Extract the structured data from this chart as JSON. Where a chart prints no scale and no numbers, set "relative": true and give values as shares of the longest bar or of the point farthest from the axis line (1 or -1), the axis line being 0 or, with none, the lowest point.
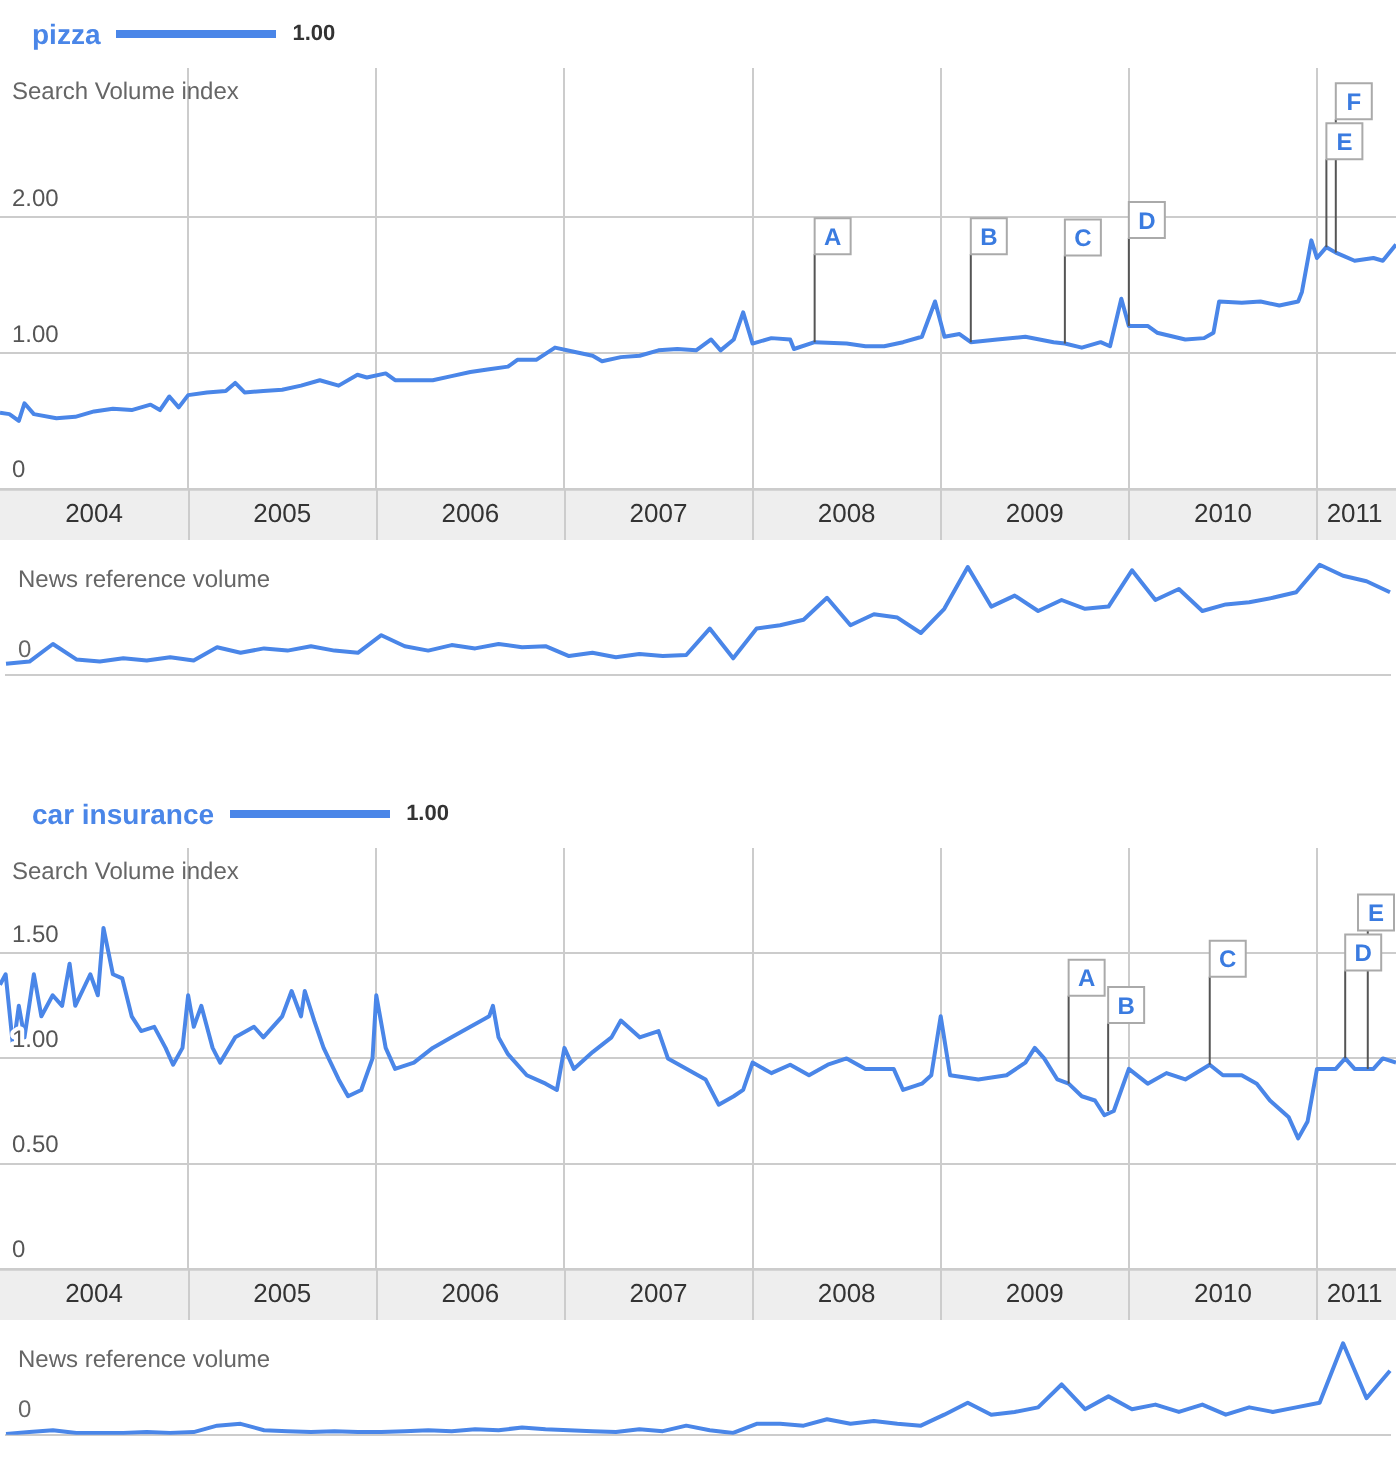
{
  "chart_data": [
    {
      "type": "line",
      "ylabel": "Search Volume index",
      "legend": "top left",
      "grid": true,
      "marker": "none",
      "line_style": "solid",
      "xlim": [
        2004,
        2011.42
      ],
      "xticks": [
        {
          "value": 2004.5,
          "label": "2004"
        },
        {
          "value": 2005,
          "label": null
        },
        {
          "value": 2005.5,
          "label": "2005"
        },
        {
          "value": 2006,
          "label": null
        },
        {
          "value": 2006.5,
          "label": "2006"
        },
        {
          "value": 2007,
          "label": null
        },
        {
          "value": 2007.5,
          "label": "2007"
        },
        {
          "value": 2008,
          "label": null
        },
        {
          "value": 2008.5,
          "label": "2008"
        },
        {
          "value": 2009,
          "label": null
        },
        {
          "value": 2009.5,
          "label": "2009"
        },
        {
          "value": 2010,
          "label": null
        },
        {
          "value": 2010.5,
          "label": "2010"
        },
        {
          "value": 2011,
          "label": null
        },
        {
          "value": 2011.2,
          "label": "2011"
        }
      ],
      "ylim": [
        0,
        3.1
      ],
      "yticks": [
        0,
        {
          "value": 1,
          "label": "1.00"
        },
        {
          "value": 2,
          "label": "2.00"
        }
      ],
      "annotations": [
        "1.00",
        {
          "text": "A",
          "x": 2008.33,
          "y": 1.08
        },
        {
          "text": "B",
          "x": 2009.16,
          "y": 1.08
        },
        {
          "text": "C",
          "x": 2009.66,
          "y": 1.07
        },
        {
          "text": "D",
          "x": 2010.0,
          "y": 1.2
        },
        {
          "text": "E",
          "x": 2011.05,
          "y": 1.78
        },
        {
          "text": "F",
          "x": 2011.1,
          "y": 1.74
        }
      ],
      "series": [
        {
          "name": "pizza",
          "color": "#4a86e8",
          "x": [
            2004.0,
            2004.05,
            2004.1,
            2004.13,
            2004.18,
            2004.3,
            2004.4,
            2004.5,
            2004.6,
            2004.7,
            2004.8,
            2004.85,
            2004.9,
            2004.95,
            2005.0,
            2005.1,
            2005.2,
            2005.25,
            2005.3,
            2005.4,
            2005.5,
            2005.6,
            2005.7,
            2005.8,
            2005.9,
            2005.95,
            2006.05,
            2006.1,
            2006.2,
            2006.3,
            2006.4,
            2006.5,
            2006.6,
            2006.7,
            2006.75,
            2006.85,
            2006.95,
            2007.05,
            2007.15,
            2007.2,
            2007.3,
            2007.4,
            2007.5,
            2007.6,
            2007.7,
            2007.78,
            2007.83,
            2007.9,
            2007.95,
            2008.0,
            2008.1,
            2008.2,
            2008.22,
            2008.33,
            2008.5,
            2008.6,
            2008.7,
            2008.8,
            2008.9,
            2008.97,
            2009.02,
            2009.1,
            2009.16,
            2009.3,
            2009.45,
            2009.6,
            2009.66,
            2009.75,
            2009.85,
            2009.9,
            2009.96,
            2010.0,
            2010.1,
            2010.15,
            2010.3,
            2010.4,
            2010.45,
            2010.48,
            2010.6,
            2010.7,
            2010.8,
            2010.9,
            2010.92,
            2010.97,
            2011.0,
            2011.05,
            2011.1,
            2011.2,
            2011.3,
            2011.35,
            2011.42
          ],
          "values": [
            0.56,
            0.55,
            0.5,
            0.63,
            0.55,
            0.52,
            0.53,
            0.57,
            0.59,
            0.58,
            0.62,
            0.58,
            0.68,
            0.6,
            0.69,
            0.71,
            0.72,
            0.78,
            0.71,
            0.72,
            0.73,
            0.76,
            0.8,
            0.76,
            0.84,
            0.82,
            0.85,
            0.8,
            0.8,
            0.8,
            0.83,
            0.86,
            0.88,
            0.9,
            0.95,
            0.95,
            1.04,
            1.01,
            0.98,
            0.94,
            0.97,
            0.98,
            1.02,
            1.03,
            1.02,
            1.1,
            1.02,
            1.1,
            1.3,
            1.07,
            1.11,
            1.1,
            1.03,
            1.08,
            1.07,
            1.05,
            1.05,
            1.08,
            1.12,
            1.38,
            1.12,
            1.14,
            1.08,
            1.1,
            1.12,
            1.08,
            1.07,
            1.04,
            1.08,
            1.05,
            1.4,
            1.2,
            1.2,
            1.15,
            1.1,
            1.11,
            1.15,
            1.38,
            1.37,
            1.38,
            1.35,
            1.38,
            1.45,
            1.83,
            1.7,
            1.78,
            1.74,
            1.68,
            1.7,
            1.68,
            1.8
          ]
        }
      ]
    },
    {
      "type": "line",
      "ylabel": "News reference volume",
      "relative": true,
      "marker": "none",
      "line_style": "solid",
      "categories": [
        null,
        null,
        null,
        null,
        null,
        null,
        null,
        null,
        null,
        null,
        null,
        null,
        null,
        null,
        null,
        null,
        null,
        null,
        null,
        null,
        null,
        null,
        null,
        null,
        null,
        null,
        null,
        null,
        null,
        null,
        null,
        null,
        null,
        null,
        null,
        null,
        null,
        null,
        null,
        null,
        null,
        null,
        null,
        null,
        null,
        null,
        null,
        null,
        null,
        null,
        null,
        null,
        null,
        null,
        null,
        null,
        null,
        null,
        null,
        null
      ],
      "annotations": [
        "0"
      ],
      "series": [
        {
          "color": "#4a86e8",
          "values": [
            0.1,
            0.12,
            0.28,
            0.14,
            0.12,
            0.15,
            0.13,
            0.16,
            0.13,
            0.25,
            0.2,
            0.24,
            0.22,
            0.26,
            0.22,
            0.2,
            0.36,
            0.26,
            0.22,
            0.27,
            0.24,
            0.28,
            0.25,
            0.26,
            0.17,
            0.2,
            0.16,
            0.19,
            0.17,
            0.18,
            0.42,
            0.15,
            0.42,
            0.45,
            0.5,
            0.7,
            0.45,
            0.55,
            0.52,
            0.38,
            0.6,
            0.98,
            0.62,
            0.72,
            0.58,
            0.68,
            0.6,
            0.62,
            0.95,
            0.68,
            0.78,
            0.58,
            0.64,
            0.66,
            0.7,
            0.75,
            1.0,
            0.9,
            0.85,
            0.75
          ]
        }
      ]
    },
    {
      "type": "line",
      "ylabel": "Search Volume index",
      "legend": "top left",
      "grid": true,
      "marker": "none",
      "line_style": "solid",
      "xlim": [
        2004,
        2011.42
      ],
      "xticks": [
        {
          "value": 2004.5,
          "label": "2004"
        },
        {
          "value": 2005,
          "label": null
        },
        {
          "value": 2005.5,
          "label": "2005"
        },
        {
          "value": 2006,
          "label": null
        },
        {
          "value": 2006.5,
          "label": "2006"
        },
        {
          "value": 2007,
          "label": null
        },
        {
          "value": 2007.5,
          "label": "2007"
        },
        {
          "value": 2008,
          "label": null
        },
        {
          "value": 2008.5,
          "label": "2008"
        },
        {
          "value": 2009,
          "label": null
        },
        {
          "value": 2009.5,
          "label": "2009"
        },
        {
          "value": 2010,
          "label": null
        },
        {
          "value": 2010.5,
          "label": "2010"
        },
        {
          "value": 2011,
          "label": null
        },
        {
          "value": 2011.2,
          "label": "2011"
        }
      ],
      "ylim": [
        0,
        2.0
      ],
      "yticks": [
        0,
        {
          "value": 0.5,
          "label": "0.50"
        },
        {
          "value": 1,
          "label": "1.00"
        },
        {
          "value": 1.5,
          "label": "1.50"
        }
      ],
      "annotations": [
        "1.00",
        {
          "text": "A",
          "x": 2009.68,
          "y": 0.88
        },
        {
          "text": "B",
          "x": 2009.89,
          "y": 0.75
        },
        {
          "text": "C",
          "x": 2010.43,
          "y": 0.97
        },
        {
          "text": "D",
          "x": 2011.15,
          "y": 1.0
        },
        {
          "text": "E",
          "x": 2011.27,
          "y": 0.95
        }
      ],
      "series": [
        {
          "name": "car insurance",
          "color": "#4a86e8",
          "x": [
            2004.0,
            2004.03,
            2004.07,
            2004.1,
            2004.13,
            2004.18,
            2004.22,
            2004.28,
            2004.33,
            2004.37,
            2004.4,
            2004.48,
            2004.52,
            2004.55,
            2004.6,
            2004.65,
            2004.7,
            2004.75,
            2004.82,
            2004.88,
            2004.92,
            2004.97,
            2005.0,
            2005.03,
            2005.07,
            2005.13,
            2005.17,
            2005.25,
            2005.35,
            2005.4,
            2005.45,
            2005.5,
            2005.55,
            2005.6,
            2005.62,
            2005.67,
            2005.72,
            2005.8,
            2005.85,
            2005.92,
            2005.98,
            2006.0,
            2006.05,
            2006.1,
            2006.2,
            2006.3,
            2006.4,
            2006.5,
            2006.6,
            2006.62,
            2006.65,
            2006.7,
            2006.8,
            2006.9,
            2006.96,
            2007.0,
            2007.05,
            2007.15,
            2007.25,
            2007.3,
            2007.4,
            2007.5,
            2007.55,
            2007.65,
            2007.75,
            2007.82,
            2007.9,
            2007.95,
            2008.0,
            2008.1,
            2008.2,
            2008.3,
            2008.4,
            2008.5,
            2008.6,
            2008.75,
            2008.8,
            2008.9,
            2008.95,
            2009.0,
            2009.05,
            2009.2,
            2009.35,
            2009.45,
            2009.5,
            2009.55,
            2009.62,
            2009.68,
            2009.75,
            2009.82,
            2009.87,
            2009.92,
            2010.0,
            2010.1,
            2010.2,
            2010.3,
            2010.43,
            2010.5,
            2010.6,
            2010.68,
            2010.75,
            2010.85,
            2010.9,
            2010.95,
            2011.0,
            2011.1,
            2011.15,
            2011.2,
            2011.3,
            2011.35,
            2011.42
          ],
          "values": [
            1.35,
            1.4,
            1.05,
            1.25,
            1.1,
            1.4,
            1.2,
            1.3,
            1.25,
            1.45,
            1.25,
            1.4,
            1.3,
            1.62,
            1.4,
            1.38,
            1.2,
            1.13,
            1.15,
            1.05,
            0.97,
            1.05,
            1.3,
            1.15,
            1.25,
            1.05,
            0.98,
            1.1,
            1.15,
            1.1,
            1.15,
            1.2,
            1.32,
            1.2,
            1.32,
            1.18,
            1.05,
            0.9,
            0.82,
            0.85,
            1.0,
            1.3,
            1.05,
            0.95,
            0.98,
            1.05,
            1.1,
            1.15,
            1.2,
            1.25,
            1.1,
            1.02,
            0.92,
            0.88,
            0.85,
            1.05,
            0.95,
            1.03,
            1.1,
            1.18,
            1.1,
            1.13,
            1.0,
            0.95,
            0.9,
            0.78,
            0.82,
            0.85,
            0.98,
            0.93,
            0.97,
            0.92,
            0.97,
            1.0,
            0.95,
            0.95,
            0.85,
            0.88,
            0.92,
            1.2,
            0.92,
            0.9,
            0.92,
            0.98,
            1.05,
            1.0,
            0.9,
            0.88,
            0.82,
            0.8,
            0.73,
            0.75,
            0.95,
            0.88,
            0.93,
            0.9,
            0.97,
            0.92,
            0.92,
            0.88,
            0.8,
            0.72,
            0.62,
            0.7,
            0.95,
            0.95,
            1.0,
            0.95,
            0.95,
            1.0,
            0.98
          ]
        }
      ]
    },
    {
      "type": "line",
      "ylabel": "News reference volume",
      "relative": true,
      "marker": "none",
      "line_style": "solid",
      "categories": [
        null,
        null,
        null,
        null,
        null,
        null,
        null,
        null,
        null,
        null,
        null,
        null,
        null,
        null,
        null,
        null,
        null,
        null,
        null,
        null,
        null,
        null,
        null,
        null,
        null,
        null,
        null,
        null,
        null,
        null,
        null,
        null,
        null,
        null,
        null,
        null,
        null,
        null,
        null,
        null,
        null,
        null,
        null,
        null,
        null,
        null,
        null,
        null,
        null,
        null,
        null,
        null,
        null,
        null,
        null,
        null,
        null,
        null,
        null,
        null
      ],
      "annotations": [
        "0"
      ],
      "series": [
        {
          "color": "#4a86e8",
          "values": [
            0.01,
            0.03,
            0.05,
            0.02,
            0.02,
            0.02,
            0.03,
            0.02,
            0.03,
            0.1,
            0.12,
            0.05,
            0.04,
            0.03,
            0.04,
            0.03,
            0.03,
            0.04,
            0.05,
            0.04,
            0.06,
            0.05,
            0.08,
            0.06,
            0.05,
            0.04,
            0.03,
            0.06,
            0.04,
            0.1,
            0.05,
            0.02,
            0.12,
            0.12,
            0.1,
            0.17,
            0.12,
            0.15,
            0.12,
            0.1,
            0.22,
            0.35,
            0.22,
            0.25,
            0.3,
            0.55,
            0.28,
            0.42,
            0.28,
            0.33,
            0.25,
            0.33,
            0.22,
            0.3,
            0.25,
            0.3,
            0.35,
            1.0,
            0.4,
            0.7
          ]
        }
      ]
    }
  ]
}
